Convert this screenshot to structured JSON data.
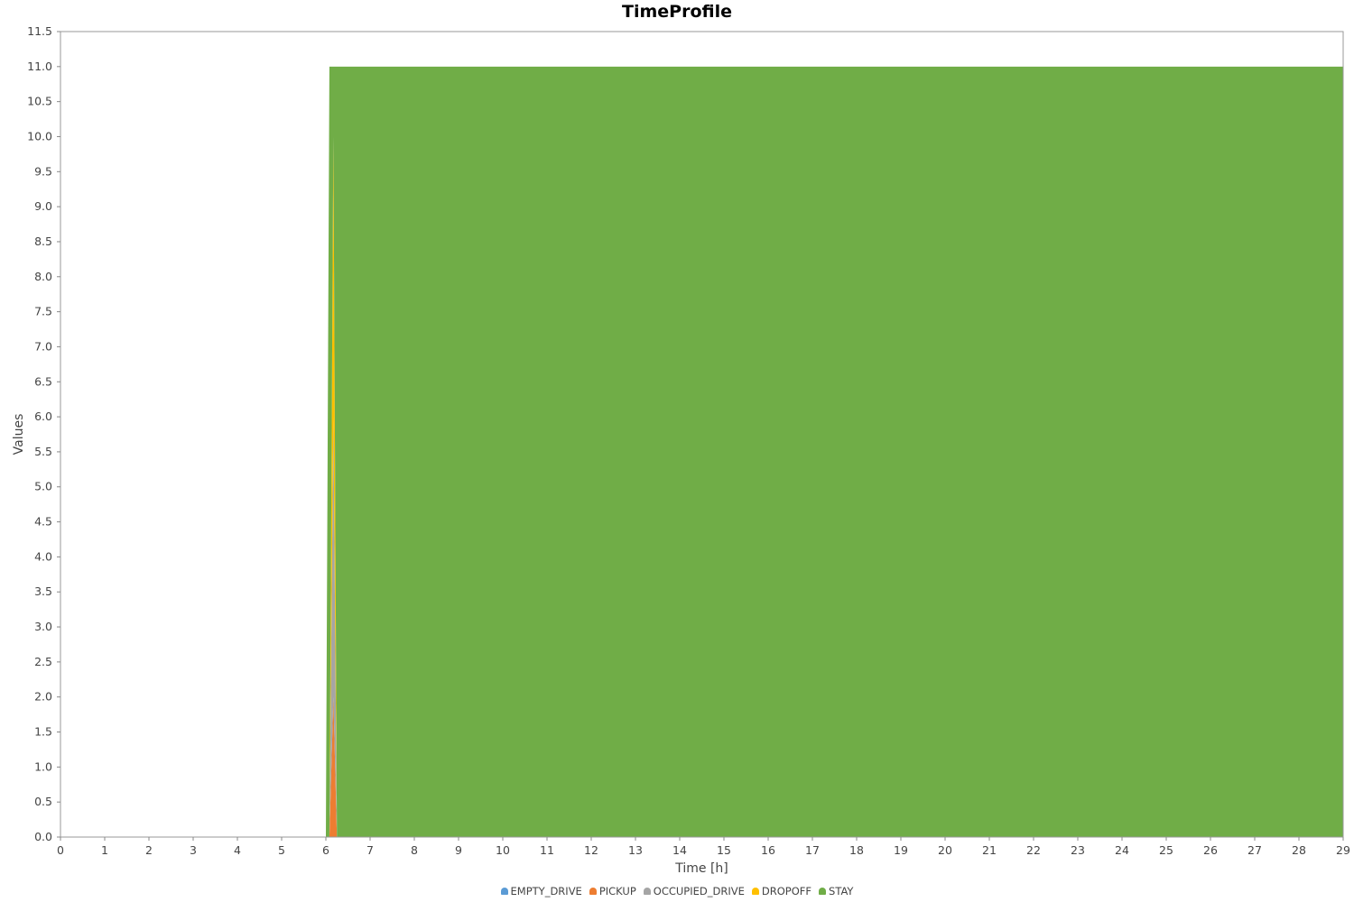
{
  "chart_data": {
    "type": "area",
    "stacked": true,
    "title": "TimeProfile",
    "xlabel": "Time [h]",
    "ylabel": "Values",
    "xlim": [
      0,
      29
    ],
    "ylim": [
      0,
      11.5
    ],
    "x_ticks": [
      0,
      1,
      2,
      3,
      4,
      5,
      6,
      7,
      8,
      9,
      10,
      11,
      12,
      13,
      14,
      15,
      16,
      17,
      18,
      19,
      20,
      21,
      22,
      23,
      24,
      25,
      26,
      27,
      28,
      29
    ],
    "y_ticks": [
      "0.0",
      "0.5",
      "1.0",
      "1.5",
      "2.0",
      "2.5",
      "3.0",
      "3.5",
      "4.0",
      "4.5",
      "5.0",
      "5.5",
      "6.0",
      "6.5",
      "7.0",
      "7.5",
      "8.0",
      "8.5",
      "9.0",
      "9.5",
      "10.0",
      "10.5",
      "11.0",
      "11.5"
    ],
    "grid": false,
    "legend_position": "bottom",
    "x": [
      0,
      6.0,
      6.08,
      6.17,
      6.25,
      6.33,
      29
    ],
    "series": [
      {
        "name": "EMPTY_DRIVE",
        "color": "#5b9bd5",
        "values": [
          0,
          0,
          0,
          0,
          0,
          0,
          0
        ]
      },
      {
        "name": "PICKUP",
        "color": "#ed7d31",
        "values": [
          0,
          0,
          0,
          2.0,
          0,
          0,
          0
        ]
      },
      {
        "name": "OCCUPIED_DRIVE",
        "color": "#a5a5a5",
        "values": [
          0,
          0,
          0,
          4.0,
          0,
          0,
          0
        ]
      },
      {
        "name": "DROPOFF",
        "color": "#ffc000",
        "values": [
          0,
          0,
          0,
          4.0,
          0,
          0,
          0
        ]
      },
      {
        "name": "STAY",
        "color": "#70ad47",
        "values": [
          0,
          0,
          11.0,
          1.0,
          11.0,
          11.0,
          11.0
        ]
      }
    ]
  }
}
